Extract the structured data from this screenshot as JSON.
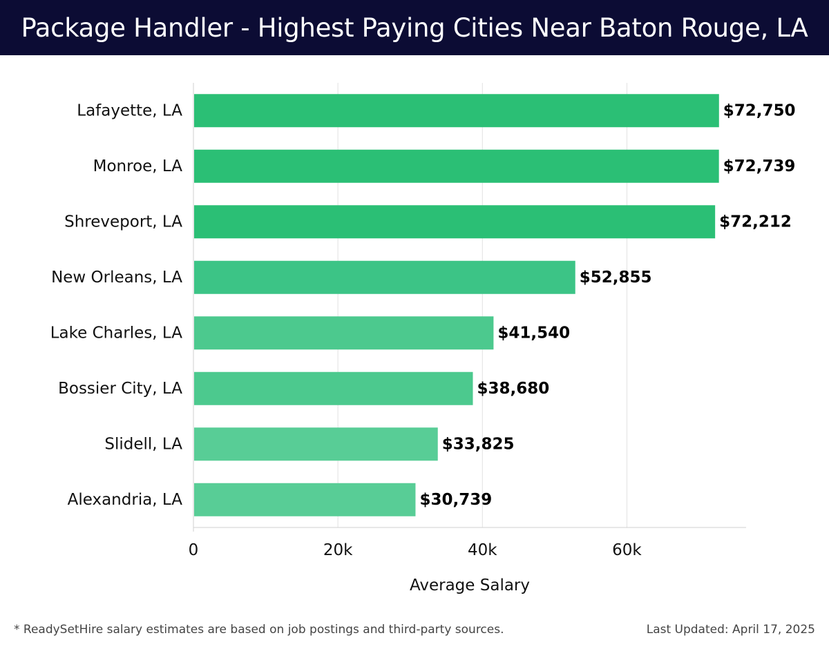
{
  "chart_data": {
    "type": "bar",
    "orientation": "horizontal",
    "title": "Package Handler - Highest Paying Cities Near Baton Rouge, LA",
    "xlabel": "Average Salary",
    "ylabel": "",
    "categories": [
      "Lafayette, LA",
      "Monroe, LA",
      "Shreveport, LA",
      "New Orleans, LA",
      "Lake Charles, LA",
      "Bossier City, LA",
      "Slidell, LA",
      "Alexandria, LA"
    ],
    "values": [
      72750,
      72739,
      72212,
      52855,
      41540,
      38680,
      33825,
      30739
    ],
    "value_labels": [
      "$72,750",
      "$72,739",
      "$72,212",
      "$52,855",
      "$41,540",
      "$38,680",
      "$33,825",
      "$30,739"
    ],
    "xticks": [
      0,
      20000,
      40000,
      60000
    ],
    "xtick_labels": [
      "0",
      "20k",
      "40k",
      "60k"
    ],
    "xlim": [
      0,
      76500
    ],
    "grid": true,
    "legend": "none",
    "colors": {
      "darkest": "#2bbf75",
      "dark": "#3cc486",
      "mid": "#4cc98e",
      "light": "#58cd96",
      "grid": "#e2e2e2",
      "axis": "#cfcfcf",
      "text": "#111111"
    }
  },
  "footer": {
    "note": "* ReadySetHire salary estimates are based on job postings and third-party sources.",
    "updated": "Last Updated: April 17, 2025"
  }
}
